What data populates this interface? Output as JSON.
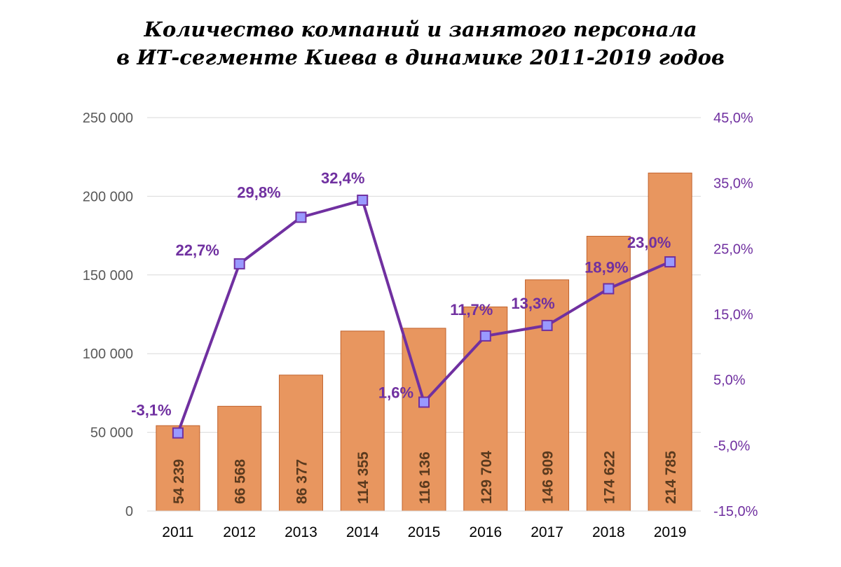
{
  "chart_data": {
    "type": "bar",
    "title": [
      "Количество компаний и занятого персонала",
      "в ИТ-сегменте Киева в динамике 2011-2019 годов"
    ],
    "categories": [
      "2011",
      "2012",
      "2013",
      "2014",
      "2015",
      "2016",
      "2017",
      "2018",
      "2019"
    ],
    "bar_series": {
      "values": [
        54239,
        66568,
        86377,
        114355,
        116136,
        129704,
        146909,
        174622,
        214785
      ],
      "labels": [
        "54 239",
        "66 568",
        "86 377",
        "114 355",
        "116 136",
        "129 704",
        "146 909",
        "174 622",
        "214 785"
      ],
      "color": "#e8965f",
      "border_color": "#c0612b"
    },
    "line_series": {
      "values": [
        -3.1,
        22.7,
        29.8,
        32.4,
        1.6,
        11.7,
        13.3,
        18.9,
        23.0
      ],
      "labels": [
        "-3,1%",
        "22,7%",
        "29,8%",
        "32,4%",
        "1,6%",
        "11,7%",
        "13,3%",
        "18,9%",
        "23,0%"
      ],
      "color": "#7030a0",
      "marker_fill": "#9999ff"
    },
    "y_left": {
      "min": 0,
      "max": 250000,
      "ticks": [
        0,
        50000,
        100000,
        150000,
        200000,
        250000
      ],
      "tick_labels": [
        "0",
        "50 000",
        "100 000",
        "150 000",
        "200 000",
        "250 000"
      ]
    },
    "y_right": {
      "min": -15,
      "max": 45,
      "ticks": [
        -15,
        -5,
        5,
        15,
        25,
        35,
        45
      ],
      "tick_labels": [
        "-15,0%",
        "-5,0%",
        "5,0%",
        "15,0%",
        "25,0%",
        "35,0%",
        "45,0%"
      ]
    },
    "grid": true,
    "legend": "none"
  }
}
